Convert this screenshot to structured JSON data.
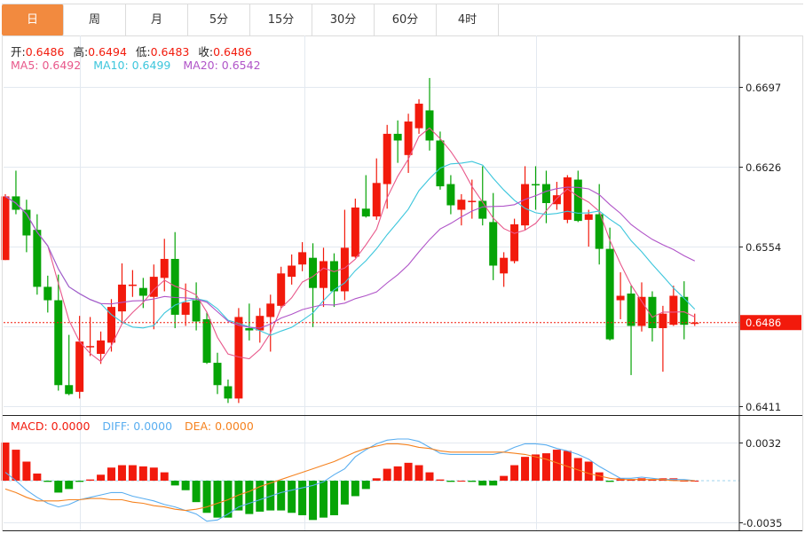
{
  "tabs": [
    {
      "label": "日",
      "active": true
    },
    {
      "label": "周"
    },
    {
      "label": "月"
    },
    {
      "label": "5分"
    },
    {
      "label": "15分"
    },
    {
      "label": "30分"
    },
    {
      "label": "60分"
    },
    {
      "label": "4时"
    }
  ],
  "ohlc_header": {
    "open_label": "开:",
    "open": "0.6486",
    "high_label": "高:",
    "high": "0.6494",
    "low_label": "低:",
    "low": "0.6483",
    "close_label": "收:",
    "close": "0.6486"
  },
  "ma_header": {
    "ma5": "MA5: 0.6492",
    "ma10": "MA10: 0.6499",
    "ma20": "MA20: 0.6542"
  },
  "macd_header": {
    "macd": "MACD: 0.0000",
    "diff": "DIFF: 0.0000",
    "dea": "DEA: 0.0000"
  },
  "colors": {
    "up": "#f21a0c",
    "down": "#06a406",
    "ma5": "#e8578a",
    "ma10": "#3cc6dc",
    "ma20": "#b054c8",
    "diff": "#5aaef0",
    "dea": "#f5821f",
    "active_tab": "#f28a3f"
  },
  "chart_data": [
    {
      "type": "candlestick",
      "yticks": [
        "0.6697",
        "0.6626",
        "0.6554",
        "0.6411"
      ],
      "ylim": [
        0.6411,
        0.6697
      ],
      "current_price": "0.6486",
      "grid": true,
      "ma_periods": [
        5,
        10,
        20
      ],
      "candles": [
        [
          0.6542,
          0.6601,
          0.6542,
          0.6599
        ],
        [
          0.6599,
          0.6622,
          0.6583,
          0.6587
        ],
        [
          0.6587,
          0.6596,
          0.6549,
          0.6564
        ],
        [
          0.6569,
          0.6583,
          0.6511,
          0.6518
        ],
        [
          0.6518,
          0.6528,
          0.6495,
          0.6506
        ],
        [
          0.6506,
          0.6529,
          0.6425,
          0.643
        ],
        [
          0.643,
          0.6475,
          0.6421,
          0.6422
        ],
        [
          0.6424,
          0.6492,
          0.6418,
          0.6469
        ],
        [
          0.6464,
          0.6491,
          0.6456,
          0.6465
        ],
        [
          0.6458,
          0.6478,
          0.6449,
          0.647
        ],
        [
          0.6468,
          0.6507,
          0.646,
          0.65
        ],
        [
          0.6496,
          0.6539,
          0.6486,
          0.652
        ],
        [
          0.6519,
          0.6533,
          0.6509,
          0.652
        ],
        [
          0.6517,
          0.6526,
          0.6499,
          0.651
        ],
        [
          0.6509,
          0.6538,
          0.648,
          0.6527
        ],
        [
          0.6526,
          0.6561,
          0.6514,
          0.6543
        ],
        [
          0.6543,
          0.6567,
          0.6481,
          0.6493
        ],
        [
          0.6493,
          0.6521,
          0.6483,
          0.6504
        ],
        [
          0.6506,
          0.6522,
          0.6479,
          0.6487
        ],
        [
          0.6489,
          0.6495,
          0.6449,
          0.645
        ],
        [
          0.645,
          0.6459,
          0.6422,
          0.643
        ],
        [
          0.6429,
          0.6435,
          0.6414,
          0.6418
        ],
        [
          0.6418,
          0.6499,
          0.6414,
          0.6491
        ],
        [
          0.6481,
          0.6503,
          0.647,
          0.6479
        ],
        [
          0.6479,
          0.6499,
          0.6468,
          0.6492
        ],
        [
          0.6491,
          0.6511,
          0.646,
          0.6503
        ],
        [
          0.6501,
          0.6536,
          0.6499,
          0.653
        ],
        [
          0.6527,
          0.6547,
          0.652,
          0.6537
        ],
        [
          0.6538,
          0.6558,
          0.6532,
          0.6549
        ],
        [
          0.6544,
          0.6557,
          0.6482,
          0.6517
        ],
        [
          0.6517,
          0.6553,
          0.65,
          0.6541
        ],
        [
          0.6541,
          0.6548,
          0.65,
          0.6514
        ],
        [
          0.6514,
          0.6587,
          0.6506,
          0.6553
        ],
        [
          0.6545,
          0.6597,
          0.6544,
          0.6589
        ],
        [
          0.6588,
          0.6618,
          0.658,
          0.6581
        ],
        [
          0.6581,
          0.6633,
          0.6578,
          0.6611
        ],
        [
          0.661,
          0.6663,
          0.6588,
          0.6655
        ],
        [
          0.6655,
          0.6667,
          0.6629,
          0.6649
        ],
        [
          0.6636,
          0.6673,
          0.662,
          0.6666
        ],
        [
          0.666,
          0.6686,
          0.6655,
          0.6682
        ],
        [
          0.6676,
          0.6705,
          0.664,
          0.6649
        ],
        [
          0.6649,
          0.6657,
          0.6605,
          0.6608
        ],
        [
          0.661,
          0.6618,
          0.6583,
          0.6591
        ],
        [
          0.6587,
          0.6601,
          0.6573,
          0.6596
        ],
        [
          0.6594,
          0.6614,
          0.6579,
          0.6595
        ],
        [
          0.6595,
          0.6626,
          0.6573,
          0.6579
        ],
        [
          0.6576,
          0.6602,
          0.6524,
          0.6537
        ],
        [
          0.653,
          0.6549,
          0.6518,
          0.6544
        ],
        [
          0.6541,
          0.6579,
          0.6539,
          0.6574
        ],
        [
          0.6573,
          0.6626,
          0.6569,
          0.661
        ],
        [
          0.661,
          0.6626,
          0.6587,
          0.6609
        ],
        [
          0.661,
          0.6622,
          0.6575,
          0.6593
        ],
        [
          0.6592,
          0.6612,
          0.6587,
          0.66
        ],
        [
          0.6578,
          0.6618,
          0.6575,
          0.6616
        ],
        [
          0.6614,
          0.6622,
          0.6576,
          0.6577
        ],
        [
          0.6578,
          0.6587,
          0.6554,
          0.6583
        ],
        [
          0.6583,
          0.661,
          0.6538,
          0.6552
        ],
        [
          0.6552,
          0.6571,
          0.647,
          0.6471
        ],
        [
          0.6506,
          0.6531,
          0.6489,
          0.651
        ],
        [
          0.6512,
          0.6519,
          0.6439,
          0.6483
        ],
        [
          0.6483,
          0.6522,
          0.6478,
          0.6509
        ],
        [
          0.6509,
          0.6514,
          0.6469,
          0.6481
        ],
        [
          0.6481,
          0.6501,
          0.6442,
          0.6494
        ],
        [
          0.6484,
          0.6519,
          0.6483,
          0.651
        ],
        [
          0.6509,
          0.6523,
          0.6471,
          0.6484
        ],
        [
          0.6486,
          0.6494,
          0.6483,
          0.6486
        ]
      ]
    },
    {
      "type": "bar+line",
      "yticks": [
        "0.0032",
        "-0.0035"
      ],
      "ylim": [
        -0.0035,
        0.0032
      ],
      "macd": [
        0.0032,
        0.0026,
        0.0016,
        0.0006,
        -0.0001,
        -0.001,
        -0.0007,
        -0.0001,
        0.0001,
        0.0005,
        0.0011,
        0.0013,
        0.0013,
        0.0012,
        0.0011,
        0.0007,
        -0.0004,
        -0.0008,
        -0.0018,
        -0.0027,
        -0.0031,
        -0.0031,
        -0.0025,
        -0.0028,
        -0.0026,
        -0.0025,
        -0.0025,
        -0.0027,
        -0.0029,
        -0.0033,
        -0.0031,
        -0.0029,
        -0.002,
        -0.0013,
        -0.0007,
        0.0002,
        0.001,
        0.0012,
        0.0015,
        0.0013,
        0.0007,
        0.0001,
        -0.0001,
        0.0,
        -0.0001,
        -0.0004,
        -0.0004,
        0.0004,
        0.0013,
        0.002,
        0.0022,
        0.0023,
        0.0026,
        0.0025,
        0.0019,
        0.0016,
        0.0007,
        -0.0001,
        0.0002,
        0.0001,
        0.0002,
        0.0001,
        0.0002,
        0.0002,
        0.0,
        0.0
      ],
      "diff": [
        0.0007,
        0.0,
        -0.0008,
        -0.0014,
        -0.0019,
        -0.0022,
        -0.002,
        -0.0016,
        -0.0014,
        -0.0012,
        -0.001,
        -0.001,
        -0.0013,
        -0.0015,
        -0.0017,
        -0.002,
        -0.0022,
        -0.0025,
        -0.0028,
        -0.0034,
        -0.0033,
        -0.0028,
        -0.0022,
        -0.0019,
        -0.0016,
        -0.0013,
        -0.001,
        -0.0008,
        -0.0006,
        -0.0004,
        -0.0001,
        0.0005,
        0.001,
        0.002,
        0.0026,
        0.0031,
        0.0034,
        0.0035,
        0.0035,
        0.0033,
        0.0028,
        0.0023,
        0.0022,
        0.0022,
        0.0022,
        0.0022,
        0.0022,
        0.0024,
        0.0028,
        0.0031,
        0.0031,
        0.003,
        0.0027,
        0.0025,
        0.0022,
        0.0018,
        0.0012,
        0.0007,
        0.0002,
        0.0002,
        0.0003,
        0.0002,
        0.0001,
        0.0001,
        0.0001,
        0.0
      ],
      "dea": [
        -0.0007,
        -0.001,
        -0.0014,
        -0.0017,
        -0.0017,
        -0.0017,
        -0.0016,
        -0.0016,
        -0.0015,
        -0.0015,
        -0.0016,
        -0.0016,
        -0.0018,
        -0.0019,
        -0.0021,
        -0.0022,
        -0.0024,
        -0.0025,
        -0.0024,
        -0.0022,
        -0.0019,
        -0.0016,
        -0.0012,
        -0.0009,
        -0.0005,
        -0.0002,
        0.0001,
        0.0004,
        0.0007,
        0.001,
        0.0013,
        0.0016,
        0.002,
        0.0024,
        0.0027,
        0.0029,
        0.0031,
        0.0031,
        0.003,
        0.0028,
        0.0027,
        0.0025,
        0.0024,
        0.0024,
        0.0024,
        0.0024,
        0.0024,
        0.0024,
        0.0023,
        0.0022,
        0.002,
        0.0018,
        0.0015,
        0.0012,
        0.0009,
        0.0006,
        0.0004,
        0.0002,
        0.0001,
        0.0001,
        0.0001,
        0.0001,
        0.0001,
        0.0,
        0.0,
        0.0
      ]
    }
  ]
}
